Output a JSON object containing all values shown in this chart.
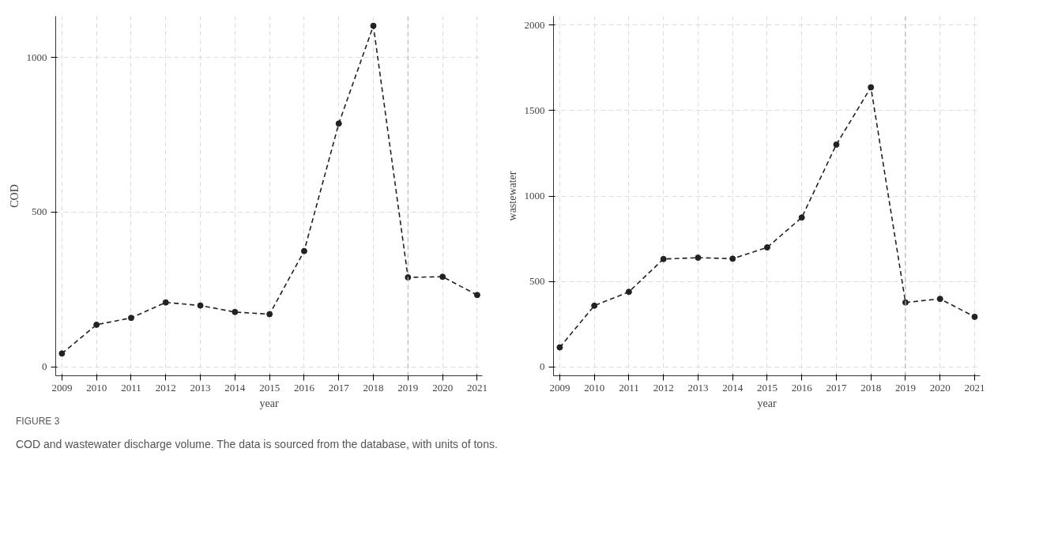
{
  "chart_data": [
    {
      "type": "line",
      "xlabel": "year",
      "ylabel": "COD",
      "x": [
        2009,
        2010,
        2011,
        2012,
        2013,
        2014,
        2015,
        2016,
        2017,
        2018,
        2019,
        2020,
        2021
      ],
      "series": [
        {
          "color": "#222222",
          "values": [
            43,
            136,
            158,
            208,
            198,
            177,
            170,
            374,
            786,
            1102,
            289,
            291,
            232
          ]
        }
      ],
      "xlim": [
        2008.82,
        2021.15
      ],
      "xticks": [
        2009,
        2010,
        2011,
        2012,
        2013,
        2014,
        2015,
        2016,
        2017,
        2018,
        2019,
        2020,
        2021
      ],
      "ylim": [
        -29,
        1133
      ],
      "yticks": [
        0,
        500,
        1000
      ],
      "grid": true,
      "marker": "circle",
      "line_style": "dashed",
      "ref_lines": [
        {
          "axis": "x",
          "value": 2019,
          "color": "#bbbbbb",
          "line_style": "dashed"
        }
      ],
      "annotations": [
        "FIGURE 3",
        "COD and wastewater discharge volume. The data is sourced from the database, with units of tons."
      ]
    },
    {
      "type": "line",
      "xlabel": "year",
      "ylabel": "wastewater",
      "x": [
        2009,
        2010,
        2011,
        2012,
        2013,
        2014,
        2015,
        2016,
        2017,
        2018,
        2019,
        2020,
        2021
      ],
      "series": [
        {
          "color": "#222222",
          "values": [
            114,
            358,
            439,
            631,
            639,
            633,
            699,
            874,
            1301,
            1636,
            377,
            398,
            293
          ]
        }
      ],
      "xlim": [
        2008.82,
        2021.16
      ],
      "xticks": [
        2009,
        2010,
        2011,
        2012,
        2013,
        2014,
        2015,
        2016,
        2017,
        2018,
        2019,
        2020,
        2021
      ],
      "ylim": [
        -52,
        2052
      ],
      "yticks": [
        0,
        500,
        1000,
        1500,
        2000
      ],
      "grid": true,
      "marker": "circle",
      "line_style": "dashed",
      "ref_lines": [
        {
          "axis": "x",
          "value": 2019,
          "color": "#bbbbbb",
          "line_style": "dashed"
        }
      ]
    }
  ]
}
